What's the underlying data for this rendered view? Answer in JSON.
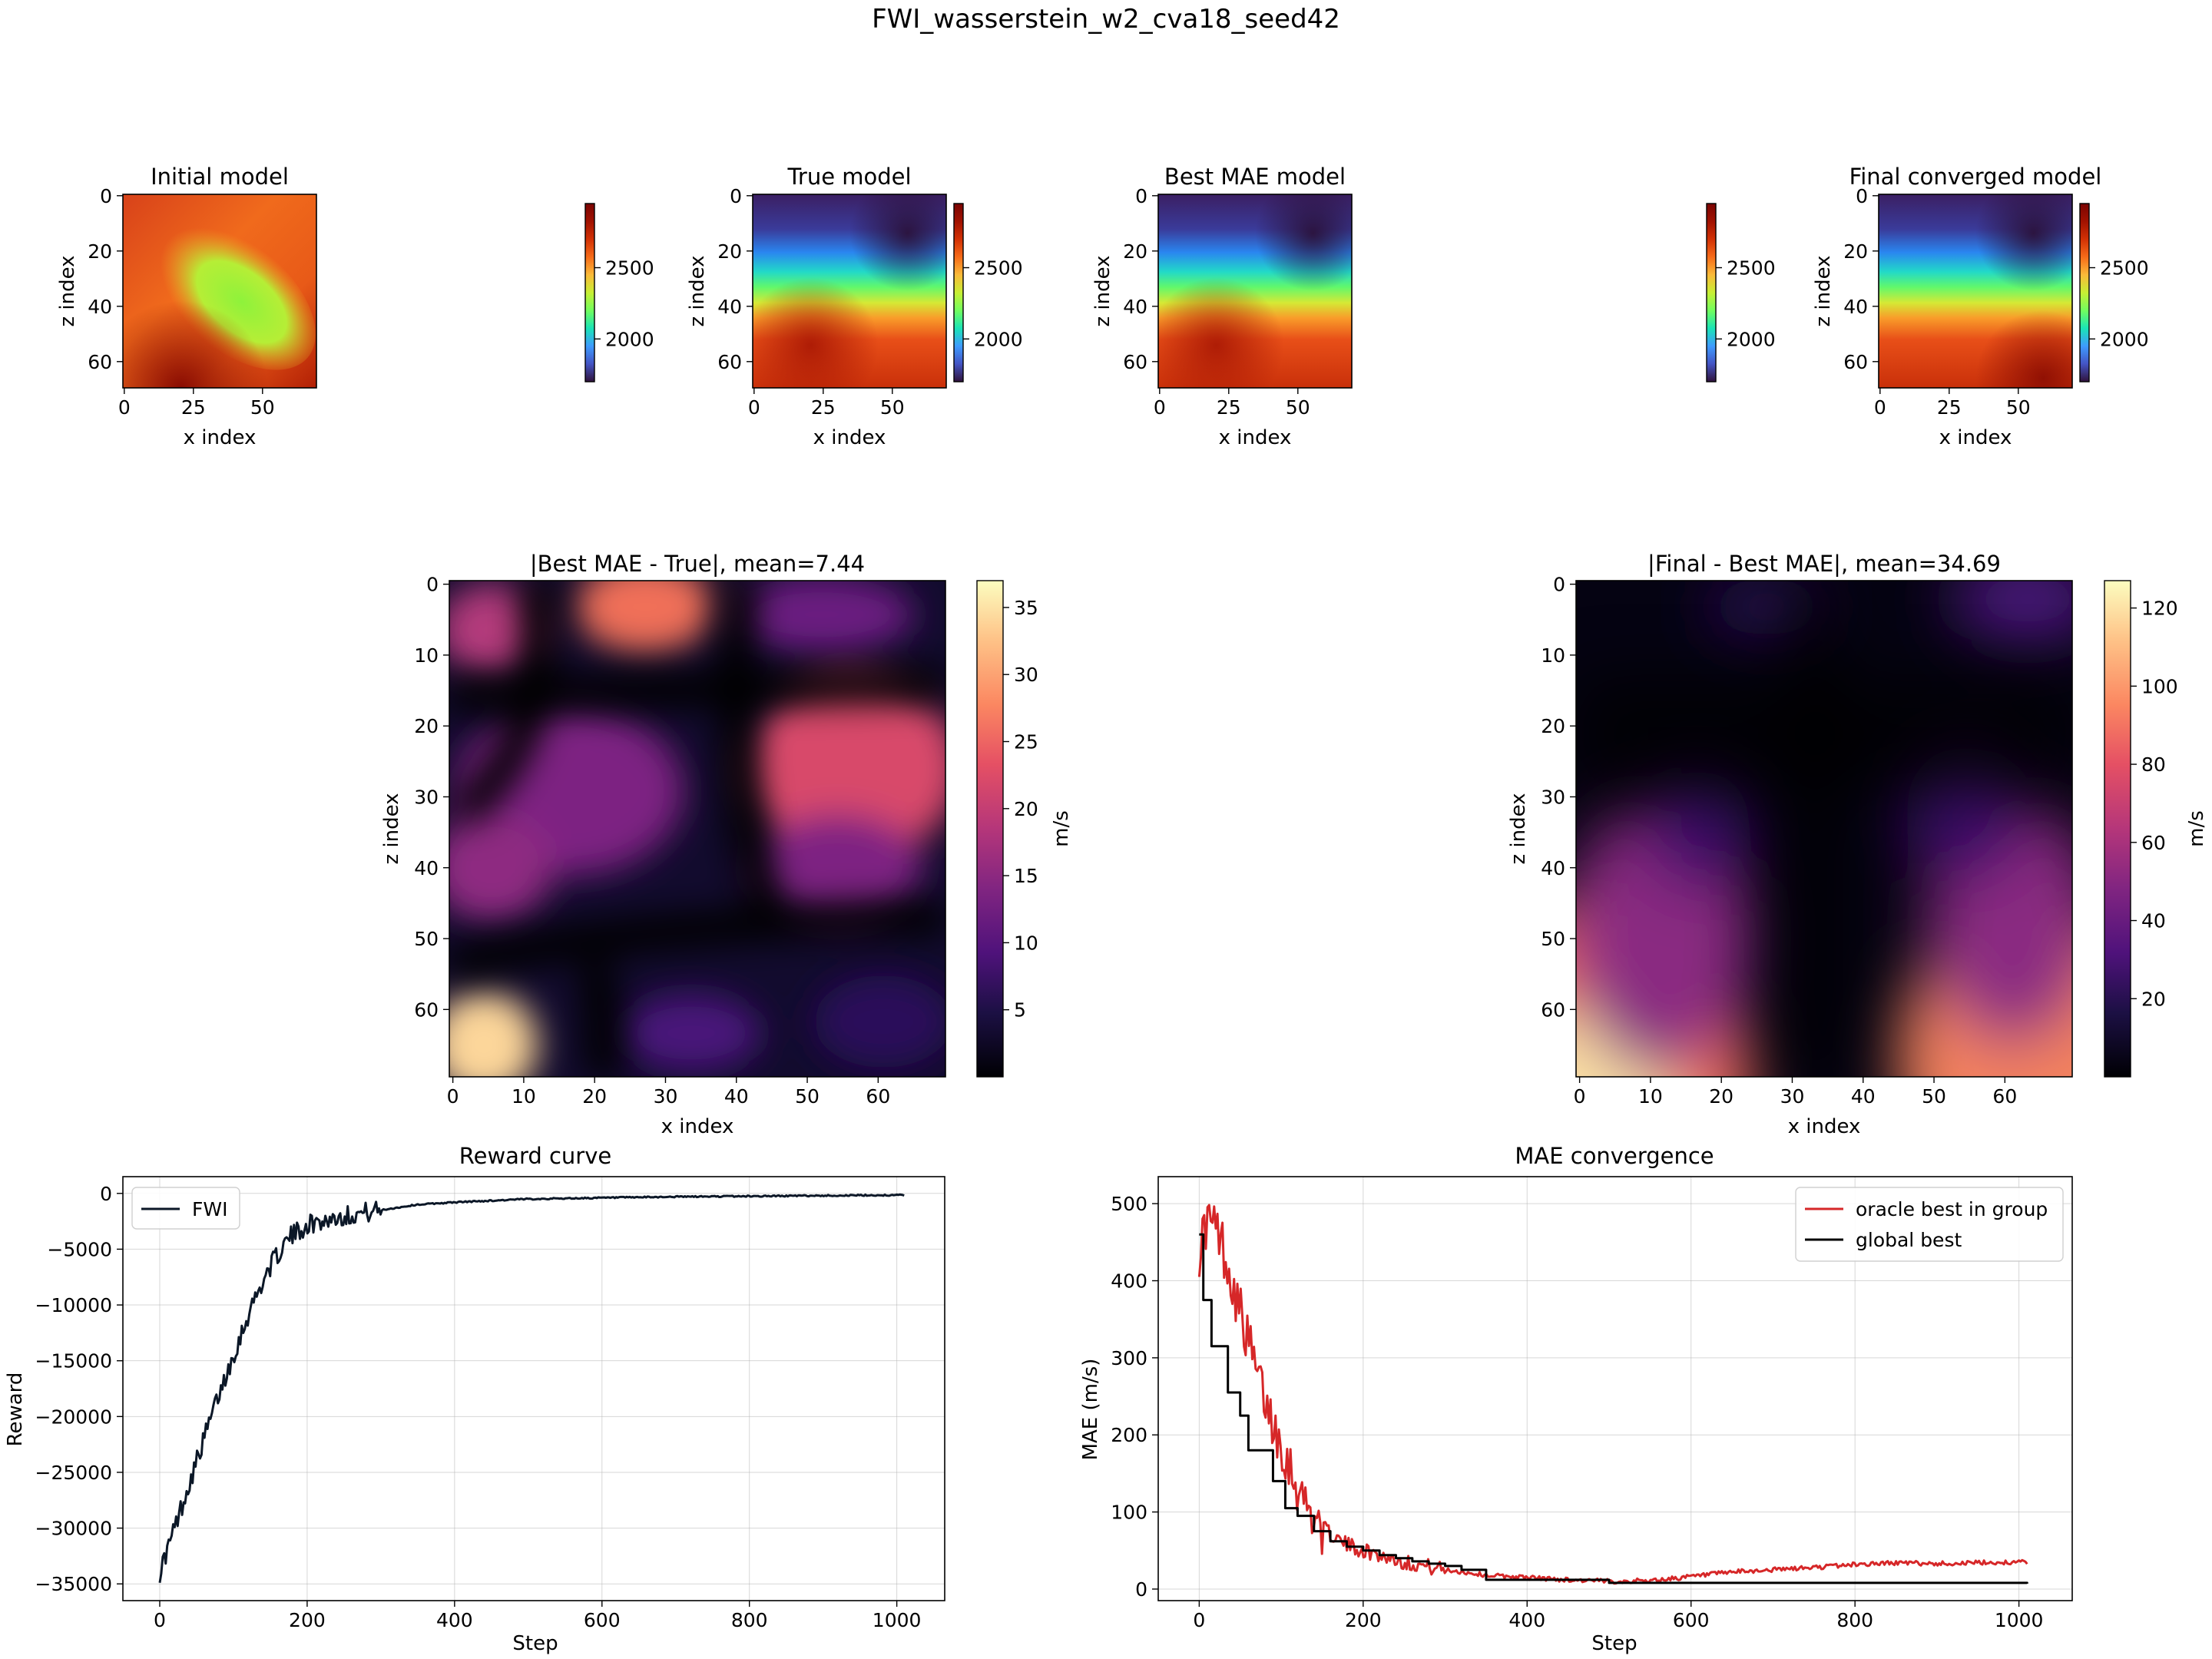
{
  "figure": {
    "title": "FWI_wasserstein_w2_cva18_seed42"
  },
  "colors": {
    "reward_line": "#0b1727",
    "oracle_line": "#d62728",
    "global_line": "#000000",
    "grid": "#b0b0b0"
  },
  "chart_data": [
    {
      "type": "heatmap",
      "title": "Initial model",
      "colormap": "turbo",
      "xlabel": "x index",
      "ylabel": "z index",
      "xticks": [
        "0",
        "25",
        "50"
      ],
      "yticks": [
        "0",
        "20",
        "40",
        "60"
      ],
      "xlim": [
        0,
        69
      ],
      "ylim": [
        69,
        0
      ],
      "colorbar_ticks": [
        "2000",
        "2500"
      ],
      "clim": [
        1700,
        2950
      ]
    },
    {
      "type": "heatmap",
      "title": "True model",
      "colormap": "turbo",
      "xlabel": "x index",
      "ylabel": "z index",
      "xticks": [
        "0",
        "25",
        "50"
      ],
      "yticks": [
        "0",
        "20",
        "40",
        "60"
      ],
      "xlim": [
        0,
        69
      ],
      "ylim": [
        69,
        0
      ],
      "colorbar_ticks": [
        "2000",
        "2500"
      ],
      "clim": [
        1700,
        2950
      ]
    },
    {
      "type": "heatmap",
      "title": "Best MAE model",
      "colormap": "turbo",
      "xlabel": "x index",
      "ylabel": "z index",
      "xticks": [
        "0",
        "25",
        "50"
      ],
      "yticks": [
        "0",
        "20",
        "40",
        "60"
      ],
      "xlim": [
        0,
        69
      ],
      "ylim": [
        69,
        0
      ]
    },
    {
      "type": "heatmap",
      "title": "Final converged model",
      "colormap": "turbo",
      "xlabel": "x index",
      "ylabel": "z index",
      "xticks": [
        "0",
        "25",
        "50"
      ],
      "yticks": [
        "0",
        "20",
        "40",
        "60"
      ],
      "xlim": [
        0,
        69
      ],
      "ylim": [
        69,
        0
      ],
      "colorbar_ticks": [
        "2000",
        "2500"
      ],
      "colorbar_ticks_final": [
        "2000",
        "2500"
      ],
      "clim": [
        1700,
        2950
      ]
    },
    {
      "type": "heatmap",
      "title": "|Best MAE - True|, mean=7.44",
      "colormap": "magma",
      "xlabel": "x index",
      "ylabel": "z index",
      "xticks": [
        "0",
        "10",
        "20",
        "30",
        "40",
        "50",
        "60"
      ],
      "yticks": [
        "0",
        "10",
        "20",
        "30",
        "40",
        "50",
        "60"
      ],
      "xlim": [
        0,
        69
      ],
      "ylim": [
        69,
        0
      ],
      "colorbar_label": "m/s",
      "colorbar_ticks": [
        "5",
        "10",
        "15",
        "20",
        "25",
        "30",
        "35"
      ],
      "clim": [
        0,
        37
      ]
    },
    {
      "type": "heatmap",
      "title": "|Final - Best MAE|, mean=34.69",
      "colormap": "magma",
      "xlabel": "x index",
      "ylabel": "z index",
      "xticks": [
        "0",
        "10",
        "20",
        "30",
        "40",
        "50",
        "60"
      ],
      "yticks": [
        "0",
        "10",
        "20",
        "30",
        "40",
        "50",
        "60"
      ],
      "xlim": [
        0,
        69
      ],
      "ylim": [
        69,
        0
      ],
      "colorbar_label": "m/s",
      "colorbar_ticks": [
        "20",
        "40",
        "60",
        "80",
        "100",
        "120"
      ],
      "clim": [
        0,
        127
      ]
    },
    {
      "type": "line",
      "title": "Reward curve",
      "xlabel": "Step",
      "ylabel": "Reward",
      "xlim": [
        -50,
        1065
      ],
      "ylim": [
        -36500,
        1500
      ],
      "xticks": [
        "0",
        "200",
        "400",
        "600",
        "800",
        "1000"
      ],
      "yticks": [
        "0",
        "−5000",
        "−10000",
        "−15000",
        "−20000",
        "−25000",
        "−30000",
        "−35000"
      ],
      "grid": true,
      "legend": "top-left",
      "series": [
        {
          "name": "FWI",
          "x": [
            0,
            25,
            50,
            75,
            100,
            125,
            150,
            175,
            200,
            250,
            300,
            350,
            400,
            500,
            600,
            700,
            800,
            900,
            1010
          ],
          "values": [
            -34000,
            -29000,
            -24000,
            -19000,
            -14500,
            -10000,
            -6500,
            -4000,
            -2800,
            -2000,
            -1500,
            -1000,
            -800,
            -500,
            -400,
            -300,
            -250,
            -200,
            -150
          ]
        }
      ]
    },
    {
      "type": "line",
      "title": "MAE convergence",
      "xlabel": "Step",
      "ylabel": "MAE (m/s)",
      "xlim": [
        -50,
        1065
      ],
      "ylim": [
        -15,
        535
      ],
      "xticks": [
        "0",
        "200",
        "400",
        "600",
        "800",
        "1000"
      ],
      "yticks": [
        "0",
        "100",
        "200",
        "300",
        "400",
        "500"
      ],
      "grid": true,
      "legend": "top-right",
      "series": [
        {
          "name": "oracle best in group",
          "x": [
            0,
            10,
            25,
            40,
            55,
            70,
            85,
            100,
            125,
            150,
            175,
            200,
            250,
            300,
            350,
            400,
            450,
            500,
            550,
            600,
            650,
            700,
            750,
            800,
            850,
            900,
            950,
            1000,
            1010
          ],
          "values": [
            440,
            480,
            460,
            400,
            340,
            280,
            230,
            190,
            120,
            80,
            60,
            50,
            35,
            25,
            18,
            15,
            12,
            10,
            11,
            16,
            22,
            25,
            28,
            32,
            34,
            33,
            34,
            35,
            35
          ]
        },
        {
          "name": "global best",
          "x": [
            0,
            5,
            15,
            35,
            50,
            60,
            75,
            90,
            105,
            120,
            140,
            160,
            180,
            200,
            220,
            240,
            260,
            280,
            300,
            320,
            350,
            500,
            1010
          ],
          "values": [
            460,
            375,
            315,
            255,
            225,
            180,
            180,
            140,
            105,
            95,
            75,
            62,
            55,
            50,
            44,
            40,
            36,
            33,
            30,
            25,
            12,
            8,
            7
          ]
        }
      ]
    }
  ]
}
